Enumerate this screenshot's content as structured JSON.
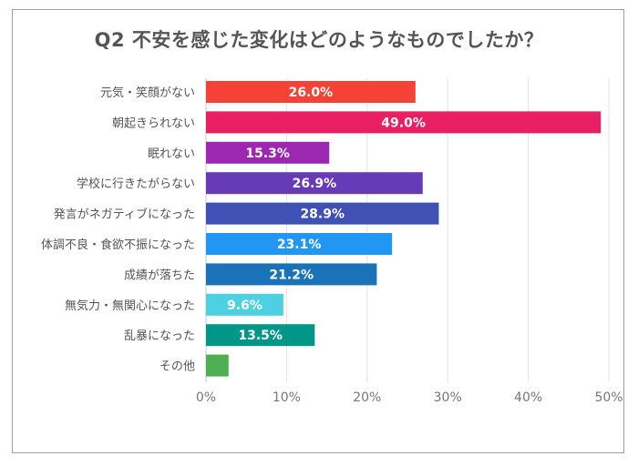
{
  "chart_data": {
    "type": "bar",
    "orientation": "horizontal",
    "title": "Q2 不安を感じた変化はどのようなものでしたか？",
    "categories": [
      "元気・笑顔がない",
      "朝起きられない",
      "眠れない",
      "学校に行きたがらない",
      "発言がネガティブになった",
      "体調不良・食欲不振になった",
      "成績が落ちた",
      "無気力・無関心になった",
      "乱暴になった",
      "その他"
    ],
    "values": [
      26.0,
      49.0,
      15.3,
      26.9,
      28.9,
      23.1,
      21.2,
      9.6,
      13.5,
      2.8
    ],
    "data_labels": [
      "26.0%",
      "49.0%",
      "15.3%",
      "26.9%",
      "28.9%",
      "23.1%",
      "21.2%",
      "9.6%",
      "13.5%",
      ""
    ],
    "colors": [
      "#f44336",
      "#e91e63",
      "#9c27b0",
      "#673ab7",
      "#3f51b5",
      "#2196f3",
      "#1a73b8",
      "#4dd0e1",
      "#009688",
      "#4caf50"
    ],
    "xlim": [
      0,
      50
    ],
    "xticks": [
      "0%",
      "10%",
      "20%",
      "30%",
      "40%",
      "50%"
    ],
    "grid": true,
    "xlabel": "",
    "ylabel": ""
  }
}
